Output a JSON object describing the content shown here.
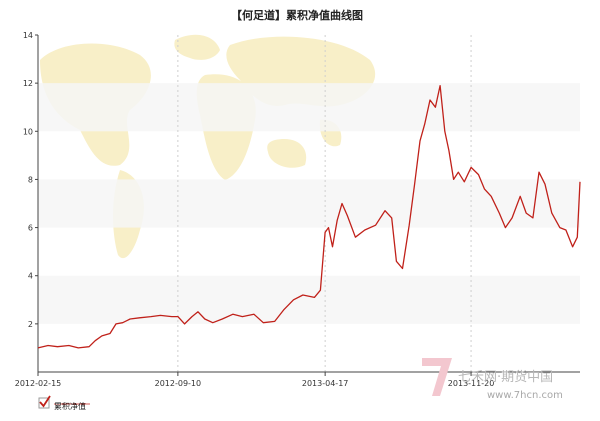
{
  "chart_data": {
    "type": "line",
    "title": "【何足道】累积净值曲线图",
    "xlabel": "",
    "ylabel": "",
    "x_ticks": [
      "2012-02-15",
      "2012-09-10",
      "2013-04-17",
      "2013-11-20"
    ],
    "y_ticks": [
      2,
      4,
      6,
      8,
      10,
      12,
      14
    ],
    "ylim": [
      0,
      14
    ],
    "grid": "alternating horizontal bands, dashed vertical lines at date ticks",
    "legend_position": "bottom-left",
    "colors": {
      "series": "#c0211a",
      "band": "#f6f6f6",
      "axis": "#333333"
    },
    "series": [
      {
        "name": "累积净值",
        "points": [
          [
            "2012-02-15",
            1.0
          ],
          [
            "2012-03-01",
            1.1
          ],
          [
            "2012-03-15",
            1.05
          ],
          [
            "2012-04-01",
            1.1
          ],
          [
            "2012-04-15",
            1.0
          ],
          [
            "2012-05-01",
            1.05
          ],
          [
            "2012-05-10",
            1.3
          ],
          [
            "2012-05-20",
            1.5
          ],
          [
            "2012-06-01",
            1.6
          ],
          [
            "2012-06-10",
            2.0
          ],
          [
            "2012-06-20",
            2.05
          ],
          [
            "2012-07-01",
            2.2
          ],
          [
            "2012-07-15",
            2.25
          ],
          [
            "2012-08-01",
            2.3
          ],
          [
            "2012-08-15",
            2.35
          ],
          [
            "2012-09-01",
            2.3
          ],
          [
            "2012-09-10",
            2.3
          ],
          [
            "2012-09-20",
            2.0
          ],
          [
            "2012-10-01",
            2.3
          ],
          [
            "2012-10-10",
            2.5
          ],
          [
            "2012-10-20",
            2.2
          ],
          [
            "2012-11-01",
            2.05
          ],
          [
            "2012-11-15",
            2.2
          ],
          [
            "2012-12-01",
            2.4
          ],
          [
            "2012-12-15",
            2.3
          ],
          [
            "2013-01-01",
            2.4
          ],
          [
            "2013-01-15",
            2.05
          ],
          [
            "2013-02-01",
            2.1
          ],
          [
            "2013-02-15",
            2.6
          ],
          [
            "2013-03-01",
            3.0
          ],
          [
            "2013-03-15",
            3.2
          ],
          [
            "2013-04-01",
            3.1
          ],
          [
            "2013-04-10",
            3.4
          ],
          [
            "2013-04-17",
            5.8
          ],
          [
            "2013-04-22",
            6.0
          ],
          [
            "2013-04-28",
            5.2
          ],
          [
            "2013-05-05",
            6.3
          ],
          [
            "2013-05-12",
            7.0
          ],
          [
            "2013-05-20",
            6.5
          ],
          [
            "2013-06-01",
            5.6
          ],
          [
            "2013-06-15",
            5.9
          ],
          [
            "2013-07-01",
            6.1
          ],
          [
            "2013-07-15",
            6.7
          ],
          [
            "2013-07-25",
            6.4
          ],
          [
            "2013-08-01",
            4.6
          ],
          [
            "2013-08-10",
            4.3
          ],
          [
            "2013-08-20",
            6.1
          ],
          [
            "2013-08-28",
            7.8
          ],
          [
            "2013-09-05",
            9.6
          ],
          [
            "2013-09-12",
            10.3
          ],
          [
            "2013-09-20",
            11.3
          ],
          [
            "2013-09-28",
            11.0
          ],
          [
            "2013-10-05",
            11.9
          ],
          [
            "2013-10-12",
            10.0
          ],
          [
            "2013-10-18",
            9.2
          ],
          [
            "2013-10-25",
            8.0
          ],
          [
            "2013-11-01",
            8.3
          ],
          [
            "2013-11-10",
            7.9
          ],
          [
            "2013-11-20",
            8.5
          ],
          [
            "2013-12-01",
            8.2
          ],
          [
            "2013-12-10",
            7.6
          ],
          [
            "2013-12-20",
            7.3
          ],
          [
            "2014-01-01",
            6.6
          ],
          [
            "2014-01-10",
            6.0
          ],
          [
            "2014-01-20",
            6.4
          ],
          [
            "2014-02-01",
            7.3
          ],
          [
            "2014-02-10",
            6.6
          ],
          [
            "2014-02-20",
            6.4
          ],
          [
            "2014-03-01",
            8.3
          ],
          [
            "2014-03-10",
            7.8
          ],
          [
            "2014-03-20",
            6.6
          ],
          [
            "2014-04-01",
            6.0
          ],
          [
            "2014-04-10",
            5.9
          ],
          [
            "2014-04-20",
            5.2
          ],
          [
            "2014-04-27",
            5.6
          ],
          [
            "2014-05-01",
            7.9
          ]
        ]
      }
    ]
  },
  "watermark": {
    "brand": "七禾网·期货中国",
    "url": "www.7hcn.com"
  }
}
